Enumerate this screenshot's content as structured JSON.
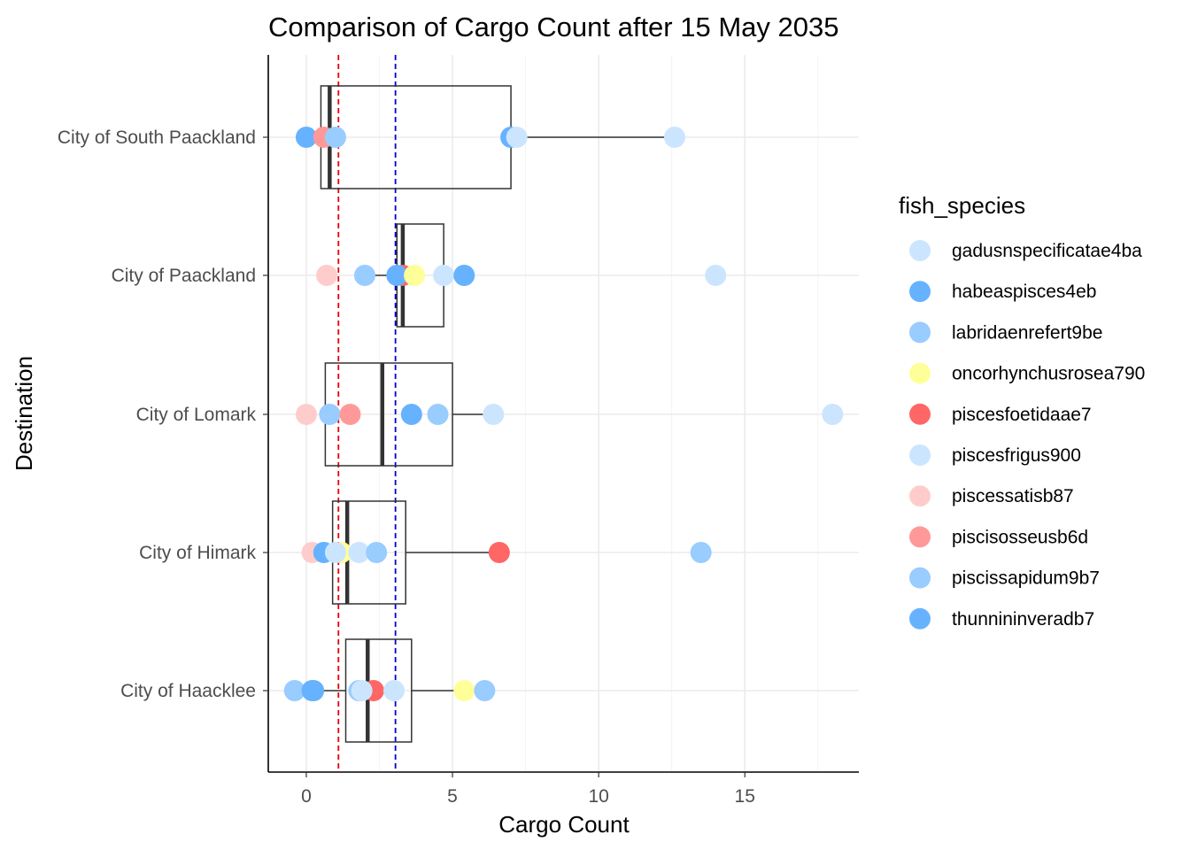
{
  "chart_data": {
    "type": "boxplot",
    "title": "Comparison of Cargo Count after 15 May 2035",
    "xlabel": "Cargo Count",
    "ylabel": "Destination",
    "xlim": [
      -1.3,
      18.9
    ],
    "x_ticks": [
      0,
      5,
      10,
      15
    ],
    "grid": true,
    "legend_title": "fish_species",
    "legend_position": "right",
    "categories": [
      "City of South Paackland",
      "City of Paackland",
      "City of Lomark",
      "City of Himark",
      "City of Haacklee"
    ],
    "reference_lines": [
      {
        "x": 1.1,
        "color": "#e8000b",
        "style": "dashed"
      },
      {
        "x": 3.05,
        "color": "#0000d0",
        "style": "dashed"
      }
    ],
    "boxes": [
      {
        "category": "City of South Paackland",
        "whisker_low": 0.0,
        "q1": 0.5,
        "median": 0.8,
        "q3": 7.0,
        "whisker_high": 12.6
      },
      {
        "category": "City of Paackland",
        "whisker_low": 2.0,
        "q1": 3.1,
        "median": 3.3,
        "q3": 4.7,
        "whisker_high": 5.4
      },
      {
        "category": "City of Lomark",
        "whisker_low": 0.6,
        "q1": 0.65,
        "median": 2.6,
        "q3": 5.0,
        "whisker_high": 6.4
      },
      {
        "category": "City of Himark",
        "whisker_low": 0.9,
        "q1": 0.9,
        "median": 1.4,
        "q3": 3.4,
        "whisker_high": 6.6
      },
      {
        "category": "City of Haacklee",
        "whisker_low": 0.2,
        "q1": 1.35,
        "median": 2.1,
        "q3": 3.6,
        "whisker_high": 5.4
      }
    ],
    "legend": [
      {
        "name": "gadusnspecificatae4ba",
        "color": "#cce5ff"
      },
      {
        "name": "habeaspisces4eb",
        "color": "#66b2ff"
      },
      {
        "name": "labridaenrefert9be",
        "color": "#99ccff"
      },
      {
        "name": "oncorhynchusrosea790",
        "color": "#ffff99"
      },
      {
        "name": "piscesfoetidaae7",
        "color": "#ff6666"
      },
      {
        "name": "piscesfrigus900",
        "color": "#cce5ff"
      },
      {
        "name": "piscessatisb87",
        "color": "#ffcccc"
      },
      {
        "name": "piscisosseusb6d",
        "color": "#ff9999"
      },
      {
        "name": "piscissapidum9b7",
        "color": "#99ccff"
      },
      {
        "name": "thunnininveradb7",
        "color": "#66b2ff"
      }
    ],
    "points": [
      {
        "category": "City of South Paackland",
        "species": "habeaspisces4eb",
        "x": 0.0,
        "jitter": 0.0
      },
      {
        "category": "City of South Paackland",
        "species": "piscisosseusb6d",
        "x": 0.6,
        "jitter": 0.0
      },
      {
        "category": "City of South Paackland",
        "species": "labridaenrefert9be",
        "x": 1.0,
        "jitter": 0.0
      },
      {
        "category": "City of South Paackland",
        "species": "habeaspisces4eb",
        "x": 7.0,
        "jitter": 0.0
      },
      {
        "category": "City of South Paackland",
        "species": "gadusnspecificatae4ba",
        "x": 7.2,
        "jitter": 0.0
      },
      {
        "category": "City of South Paackland",
        "species": "piscesfrigus900",
        "x": 12.6,
        "jitter": 0.0
      },
      {
        "category": "City of Paackland",
        "species": "piscessatisb87",
        "x": 0.7,
        "jitter": 0.0
      },
      {
        "category": "City of Paackland",
        "species": "labridaenrefert9be",
        "x": 2.0,
        "jitter": 0.0
      },
      {
        "category": "City of Paackland",
        "species": "piscesfoetidaae7",
        "x": 3.3,
        "jitter": 0.0
      },
      {
        "category": "City of Paackland",
        "species": "thunnininveradb7",
        "x": 3.1,
        "jitter": 0.0
      },
      {
        "category": "City of Paackland",
        "species": "oncorhynchusrosea790",
        "x": 3.7,
        "jitter": 0.0
      },
      {
        "category": "City of Paackland",
        "species": "gadusnspecificatae4ba",
        "x": 4.7,
        "jitter": 0.0
      },
      {
        "category": "City of Paackland",
        "species": "habeaspisces4eb",
        "x": 5.4,
        "jitter": 0.0
      },
      {
        "category": "City of Paackland",
        "species": "piscesfrigus900",
        "x": 14.0,
        "jitter": 0.0
      },
      {
        "category": "City of Lomark",
        "species": "piscessatisb87",
        "x": 0.0,
        "jitter": 0.0
      },
      {
        "category": "City of Lomark",
        "species": "labridaenrefert9be",
        "x": 0.8,
        "jitter": 0.0
      },
      {
        "category": "City of Lomark",
        "species": "piscisosseusb6d",
        "x": 1.5,
        "jitter": 0.0
      },
      {
        "category": "City of Lomark",
        "species": "habeaspisces4eb",
        "x": 3.6,
        "jitter": 0.0
      },
      {
        "category": "City of Lomark",
        "species": "piscissapidum9b7",
        "x": 4.5,
        "jitter": 0.0
      },
      {
        "category": "City of Lomark",
        "species": "gadusnspecificatae4ba",
        "x": 6.4,
        "jitter": 0.0
      },
      {
        "category": "City of Lomark",
        "species": "piscesfrigus900",
        "x": 18.0,
        "jitter": 0.0
      },
      {
        "category": "City of Himark",
        "species": "piscessatisb87",
        "x": 0.2,
        "jitter": 0.0
      },
      {
        "category": "City of Himark",
        "species": "habeaspisces4eb",
        "x": 0.6,
        "jitter": 0.0
      },
      {
        "category": "City of Himark",
        "species": "oncorhynchusrosea790",
        "x": 1.2,
        "jitter": 0.0
      },
      {
        "category": "City of Himark",
        "species": "gadusnspecificatae4ba",
        "x": 1.0,
        "jitter": 0.0
      },
      {
        "category": "City of Himark",
        "species": "piscesfrigus900",
        "x": 1.8,
        "jitter": 0.0
      },
      {
        "category": "City of Himark",
        "species": "labridaenrefert9be",
        "x": 2.4,
        "jitter": 0.0
      },
      {
        "category": "City of Himark",
        "species": "piscesfoetidaae7",
        "x": 6.6,
        "jitter": 0.0
      },
      {
        "category": "City of Himark",
        "species": "piscissapidum9b7",
        "x": 13.5,
        "jitter": 0.0
      },
      {
        "category": "City of Haacklee",
        "species": "labridaenrefert9be",
        "x": -0.4,
        "jitter": 0.0
      },
      {
        "category": "City of Haacklee",
        "species": "habeaspisces4eb",
        "x": 0.2,
        "jitter": 0.0
      },
      {
        "category": "City of Haacklee",
        "species": "thunnininveradb7",
        "x": 0.25,
        "jitter": 0.0
      },
      {
        "category": "City of Haacklee",
        "species": "piscissapidum9b7",
        "x": 1.8,
        "jitter": 0.0
      },
      {
        "category": "City of Haacklee",
        "species": "piscesfoetidaae7",
        "x": 2.3,
        "jitter": 0.0
      },
      {
        "category": "City of Haacklee",
        "species": "gadusnspecificatae4ba",
        "x": 1.9,
        "jitter": 0.0
      },
      {
        "category": "City of Haacklee",
        "species": "piscesfrigus900",
        "x": 3.0,
        "jitter": 0.0
      },
      {
        "category": "City of Haacklee",
        "species": "oncorhynchusrosea790",
        "x": 5.4,
        "jitter": 0.0
      },
      {
        "category": "City of Haacklee",
        "species": "piscissapidum9b7",
        "x": 6.1,
        "jitter": 0.0
      }
    ]
  }
}
